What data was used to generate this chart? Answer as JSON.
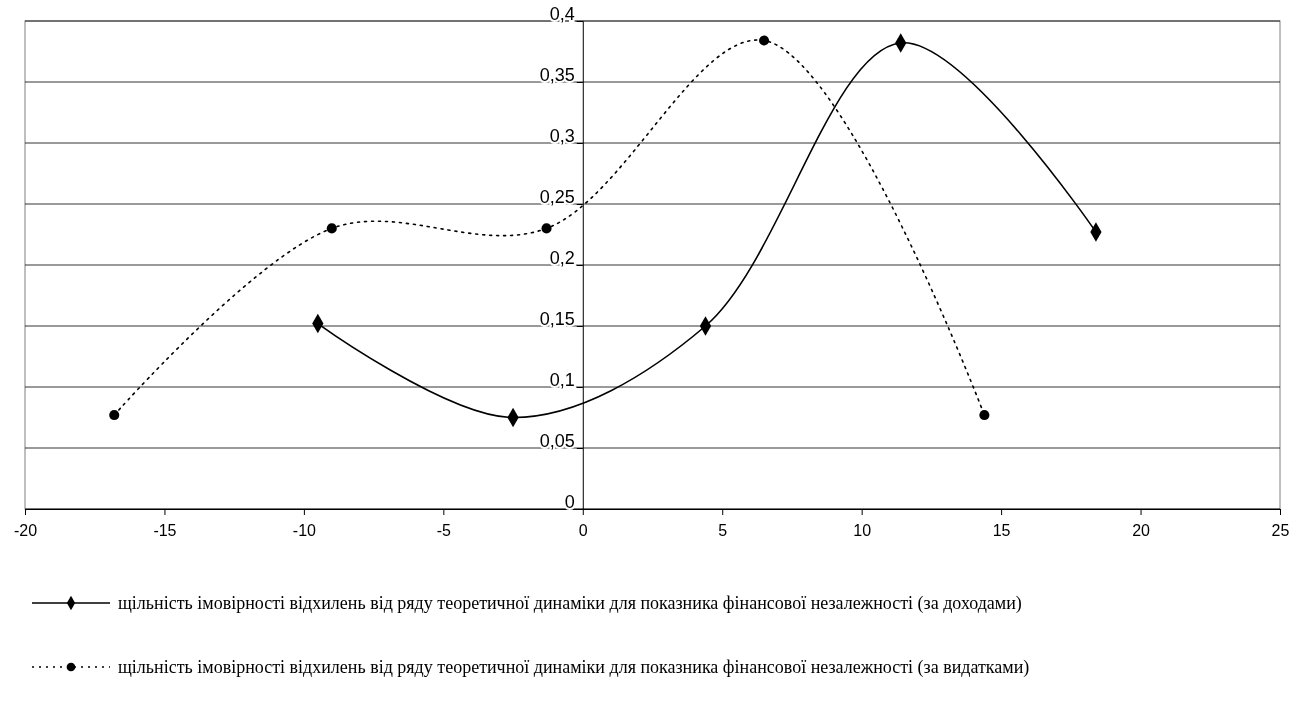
{
  "chart_data": {
    "type": "line",
    "xlim": [
      -20,
      25
    ],
    "xticks": [
      -20,
      -15,
      -10,
      -5,
      0,
      5,
      10,
      15,
      20,
      25
    ],
    "ylim": [
      0,
      0.4
    ],
    "yticks": [
      0,
      {
        "value": 0.05,
        "label": "0,05"
      },
      {
        "value": 0.1,
        "label": "0,1"
      },
      {
        "value": 0.15,
        "label": "0,15"
      },
      {
        "value": 0.2,
        "label": "0,2"
      },
      {
        "value": 0.25,
        "label": "0,25"
      },
      {
        "value": 0.3,
        "label": "0,3"
      },
      {
        "value": 0.35,
        "label": "0,35"
      },
      {
        "value": 0.4,
        "label": "0,4"
      }
    ],
    "grid": "y",
    "legend": "bottom",
    "series": [
      {
        "name": "щільність імовірності відхилень від ряду теоретичної динаміки для показника фінансової незалежності (за доходами)",
        "color": "#000000",
        "marker": "diamond",
        "line_style": "solid",
        "x": [
          -9.5,
          -2.5,
          4.4,
          11.4,
          18.4
        ],
        "values": [
          0.152,
          0.075,
          0.15,
          0.382,
          0.227
        ]
      },
      {
        "name": "щільність імовірності відхилень від ряду теоретичної динаміки для показника фінансової незалежності (за видатками)",
        "color": "#000000",
        "marker": "circle",
        "line_style": "dotted",
        "x": [
          -16.8,
          -9,
          -1.3,
          6.5,
          14.4
        ],
        "values": [
          0.077,
          0.23,
          0.23,
          0.384,
          0.077
        ]
      }
    ]
  }
}
